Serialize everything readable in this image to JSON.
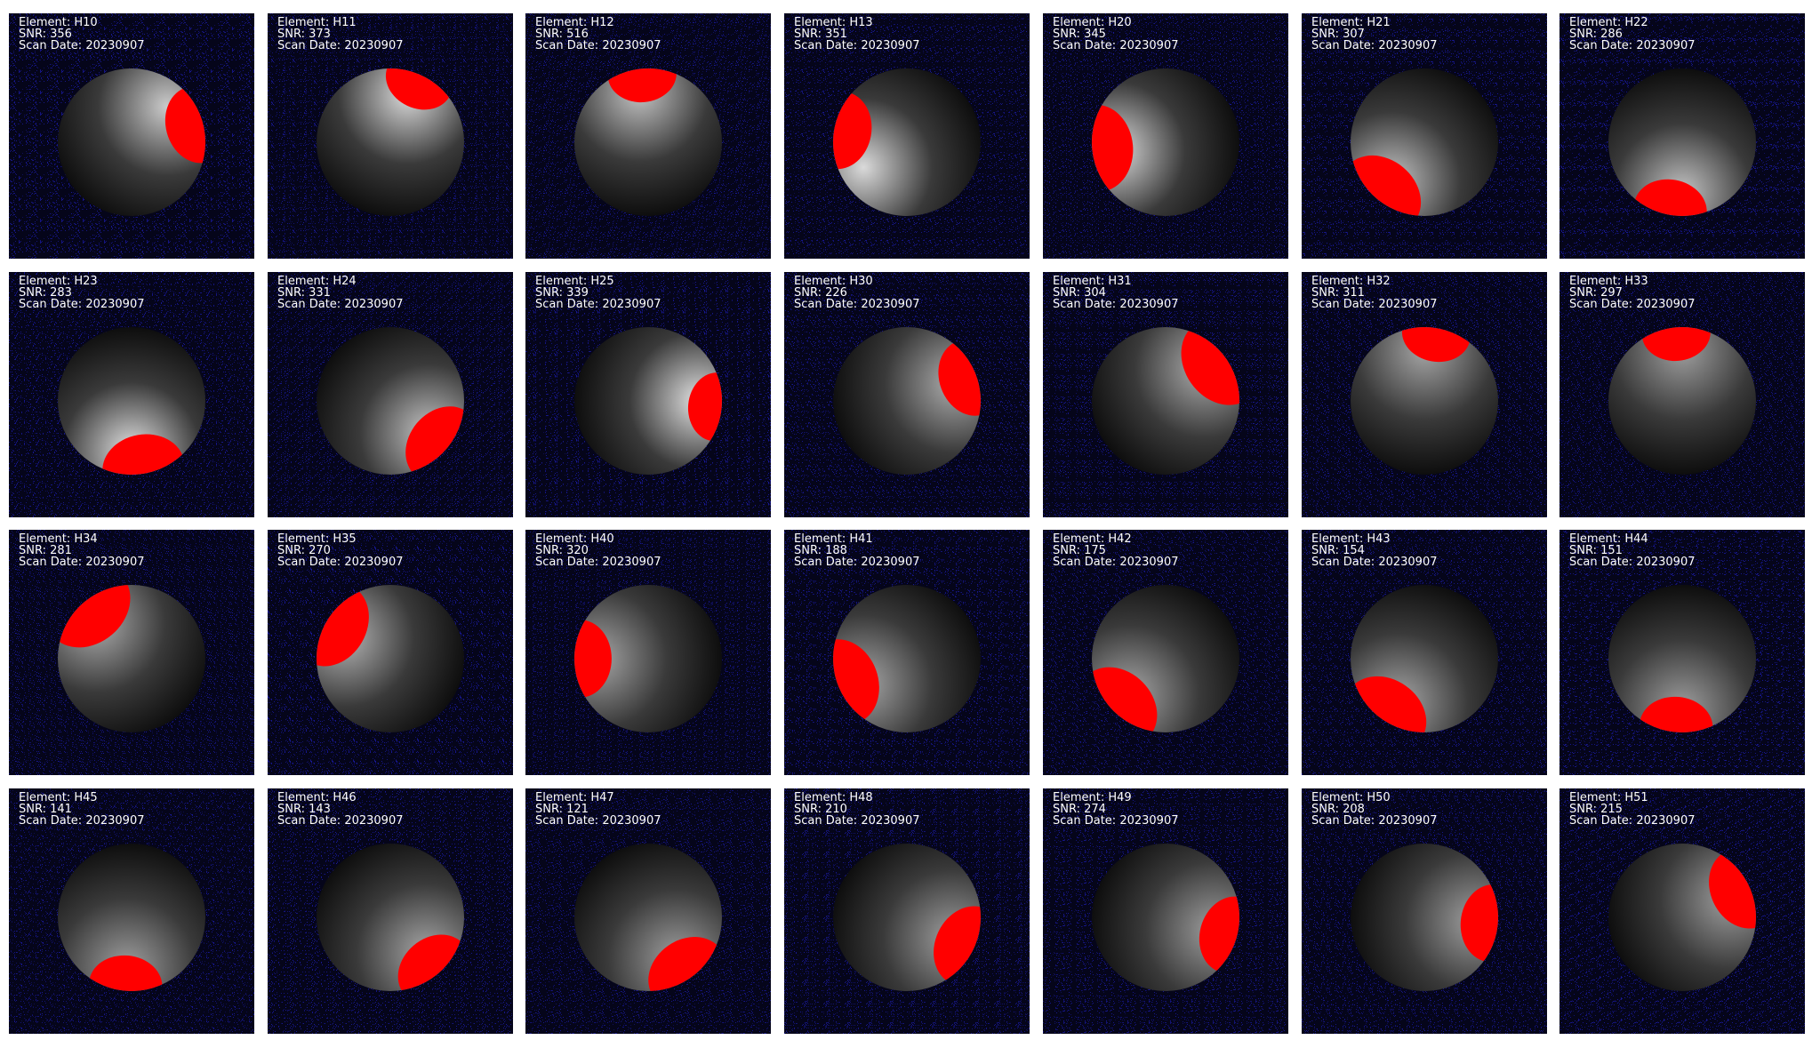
{
  "colors": {
    "background": "#05051a",
    "noise": "#1a1aa0",
    "highlight": "#ff0000",
    "label_text": "#ffffff"
  },
  "label_prefixes": {
    "element": "Element: ",
    "snr": "SNR: ",
    "scan_date": "Scan Date: "
  },
  "tiles": [
    {
      "element": "H10",
      "snr": 356,
      "scan_date": "20230907",
      "bright_angle": -45,
      "bright_level": 0.75,
      "red_angle": -15,
      "red_size": 0.85
    },
    {
      "element": "H11",
      "snr": 373,
      "scan_date": "20230907",
      "bright_angle": -70,
      "bright_level": 0.85,
      "red_angle": -65,
      "red_size": 0.75
    },
    {
      "element": "H12",
      "snr": 516,
      "scan_date": "20230907",
      "bright_angle": -100,
      "bright_level": 0.7,
      "red_angle": -95,
      "red_size": 0.75
    },
    {
      "element": "H13",
      "snr": 351,
      "scan_date": "20230907",
      "bright_angle": 150,
      "bright_level": 0.85,
      "red_angle": -170,
      "red_size": 0.85
    },
    {
      "element": "H20",
      "snr": 345,
      "scan_date": "20230907",
      "bright_angle": 170,
      "bright_level": 0.85,
      "red_angle": 175,
      "red_size": 0.95
    },
    {
      "element": "H21",
      "snr": 307,
      "scan_date": "20230907",
      "bright_angle": 130,
      "bright_level": 0.7,
      "red_angle": 130,
      "red_size": 0.95
    },
    {
      "element": "H22",
      "snr": 286,
      "scan_date": "20230907",
      "bright_angle": 90,
      "bright_level": 0.7,
      "red_angle": 100,
      "red_size": 0.8
    },
    {
      "element": "H23",
      "snr": 283,
      "scan_date": "20230907",
      "bright_angle": 90,
      "bright_level": 0.9,
      "red_angle": 80,
      "red_size": 0.9
    },
    {
      "element": "H24",
      "snr": 331,
      "scan_date": "20230907",
      "bright_angle": 40,
      "bright_level": 0.7,
      "red_angle": 40,
      "red_size": 0.9
    },
    {
      "element": "H25",
      "snr": 339,
      "scan_date": "20230907",
      "bright_angle": 0,
      "bright_level": 0.9,
      "red_angle": 5,
      "red_size": 0.75
    },
    {
      "element": "H30",
      "snr": 226,
      "scan_date": "20230907",
      "bright_angle": -20,
      "bright_level": 0.55,
      "red_angle": -20,
      "red_size": 0.85
    },
    {
      "element": "H31",
      "snr": 304,
      "scan_date": "20230907",
      "bright_angle": -40,
      "bright_level": 0.55,
      "red_angle": -35,
      "red_size": 1.0
    },
    {
      "element": "H32",
      "snr": 311,
      "scan_date": "20230907",
      "bright_angle": -90,
      "bright_level": 0.5,
      "red_angle": -80,
      "red_size": 0.75
    },
    {
      "element": "H33",
      "snr": 297,
      "scan_date": "20230907",
      "bright_angle": -90,
      "bright_level": 0.45,
      "red_angle": -95,
      "red_size": 0.75
    },
    {
      "element": "H34",
      "snr": 281,
      "scan_date": "20230907",
      "bright_angle": -135,
      "bright_level": 0.55,
      "red_angle": -130,
      "red_size": 1.0
    },
    {
      "element": "H35",
      "snr": 270,
      "scan_date": "20230907",
      "bright_angle": -155,
      "bright_level": 0.6,
      "red_angle": -150,
      "red_size": 0.95
    },
    {
      "element": "H40",
      "snr": 320,
      "scan_date": "20230907",
      "bright_angle": 180,
      "bright_level": 0.5,
      "red_angle": 180,
      "red_size": 0.85
    },
    {
      "element": "H41",
      "snr": 188,
      "scan_date": "20230907",
      "bright_angle": 150,
      "bright_level": 0.5,
      "red_angle": 160,
      "red_size": 0.95
    },
    {
      "element": "H42",
      "snr": 175,
      "scan_date": "20230907",
      "bright_angle": 135,
      "bright_level": 0.5,
      "red_angle": 135,
      "red_size": 0.95
    },
    {
      "element": "H43",
      "snr": 154,
      "scan_date": "20230907",
      "bright_angle": 120,
      "bright_level": 0.5,
      "red_angle": 125,
      "red_size": 0.95
    },
    {
      "element": "H44",
      "snr": 151,
      "scan_date": "20230907",
      "bright_angle": 90,
      "bright_level": 0.45,
      "red_angle": 95,
      "red_size": 0.8
    },
    {
      "element": "H45",
      "snr": 141,
      "scan_date": "20230907",
      "bright_angle": 95,
      "bright_level": 0.45,
      "red_angle": 95,
      "red_size": 0.8
    },
    {
      "element": "H46",
      "snr": 143,
      "scan_date": "20230907",
      "bright_angle": 45,
      "bright_level": 0.5,
      "red_angle": 50,
      "red_size": 0.85
    },
    {
      "element": "H47",
      "snr": 121,
      "scan_date": "20230907",
      "bright_angle": 55,
      "bright_level": 0.45,
      "red_angle": 55,
      "red_size": 0.9
    },
    {
      "element": "H48",
      "snr": 210,
      "scan_date": "20230907",
      "bright_angle": 25,
      "bright_level": 0.45,
      "red_angle": 25,
      "red_size": 0.9
    },
    {
      "element": "H49",
      "snr": 274,
      "scan_date": "20230907",
      "bright_angle": 15,
      "bright_level": 0.45,
      "red_angle": 15,
      "red_size": 0.85
    },
    {
      "element": "H50",
      "snr": 208,
      "scan_date": "20230907",
      "bright_angle": 5,
      "bright_level": 0.45,
      "red_angle": 5,
      "red_size": 0.85
    },
    {
      "element": "H51",
      "snr": 215,
      "scan_date": "20230907",
      "bright_angle": -20,
      "bright_level": 0.45,
      "red_angle": -25,
      "red_size": 0.9
    }
  ]
}
